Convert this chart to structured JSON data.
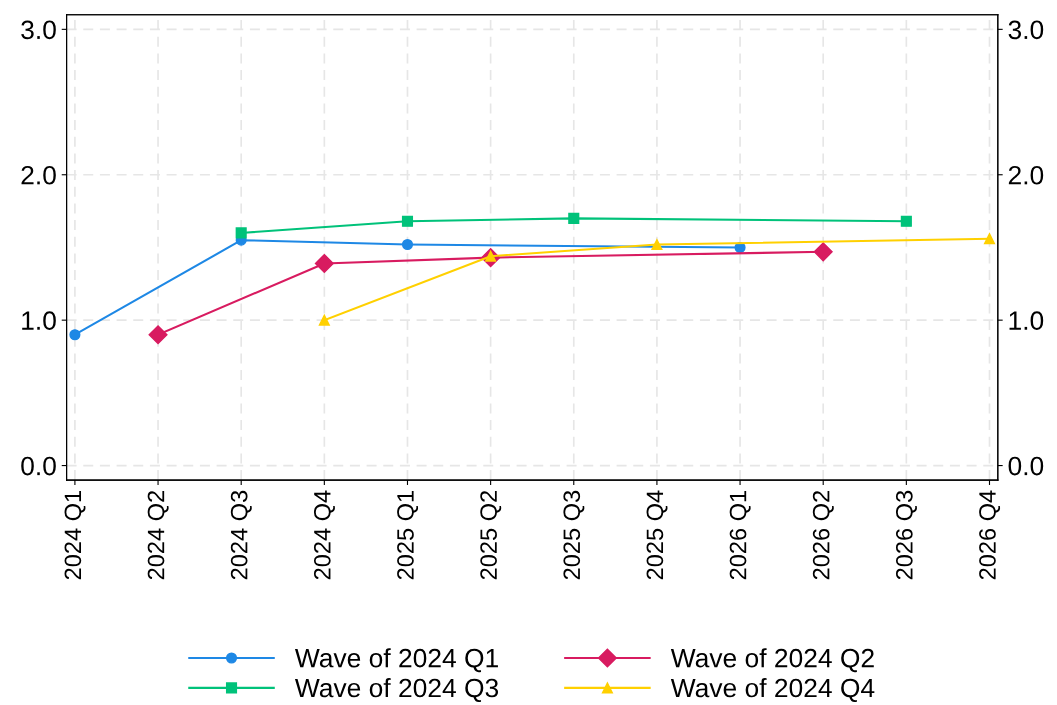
{
  "chart_data": {
    "type": "line",
    "categories": [
      "2024 Q1",
      "2024 Q2",
      "2024 Q3",
      "2024 Q4",
      "2025 Q1",
      "2025 Q2",
      "2025 Q3",
      "2025 Q4",
      "2026 Q1",
      "2026 Q2",
      "2026 Q3",
      "2026 Q4"
    ],
    "series": [
      {
        "name": "Wave of 2024 Q1",
        "color": "#1e88e5",
        "marker": "circle",
        "values": [
          0.9,
          null,
          1.55,
          null,
          1.52,
          null,
          null,
          null,
          1.5,
          null,
          null,
          null
        ]
      },
      {
        "name": "Wave of 2024 Q2",
        "color": "#d81b60",
        "marker": "diamond",
        "values": [
          null,
          0.9,
          null,
          1.39,
          null,
          1.43,
          null,
          null,
          null,
          1.47,
          null,
          null
        ]
      },
      {
        "name": "Wave of 2024 Q3",
        "color": "#00c27a",
        "marker": "square",
        "values": [
          null,
          null,
          1.6,
          null,
          1.68,
          null,
          1.7,
          null,
          null,
          null,
          1.68,
          null
        ]
      },
      {
        "name": "Wave of 2024 Q4",
        "color": "#ffd000",
        "marker": "triangle",
        "values": [
          null,
          null,
          null,
          1.0,
          null,
          1.44,
          null,
          1.52,
          null,
          null,
          null,
          1.56
        ]
      }
    ],
    "ylim": [
      -0.1,
      3.1
    ],
    "yticks": [
      {
        "value": 0,
        "label": "0.0"
      },
      {
        "value": 1,
        "label": "1.0"
      },
      {
        "value": 2,
        "label": "2.0"
      },
      {
        "value": 3,
        "label": "3.0"
      }
    ],
    "y2lim": [
      -0.1,
      3.1
    ],
    "y2ticks": [
      {
        "value": 0,
        "label": "0.0"
      },
      {
        "value": 1,
        "label": "1.0"
      },
      {
        "value": 2,
        "label": "2.0"
      },
      {
        "value": 3,
        "label": "3.0"
      }
    ],
    "grid": true,
    "legend": "bottom",
    "line_style": "solid"
  }
}
